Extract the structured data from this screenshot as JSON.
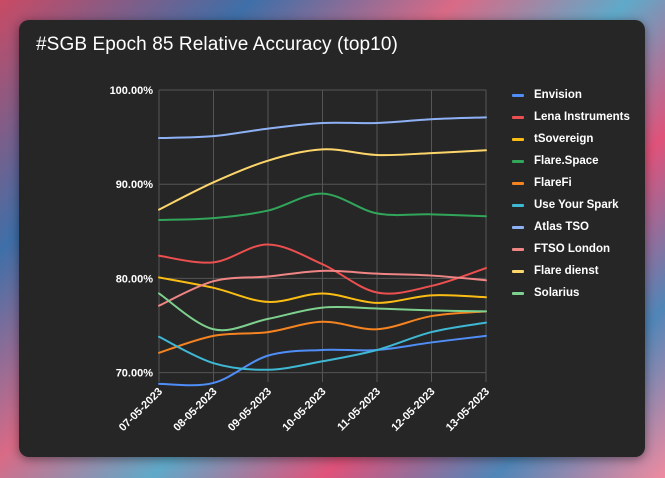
{
  "chart_data": {
    "type": "line",
    "title": "#SGB Epoch 85 Relative Accuracy (top10)",
    "xlabel": "",
    "ylabel": "",
    "ylim": [
      69,
      100
    ],
    "yticks": [
      70,
      80,
      90,
      100
    ],
    "ytick_labels": [
      "70.00%",
      "80.00%",
      "90.00%",
      "100.00%"
    ],
    "categories": [
      "07-05-2023",
      "08-05-2023",
      "09-05-2023",
      "10-05-2023",
      "11-05-2023",
      "12-05-2023",
      "13-05-2023"
    ],
    "grid": true,
    "legend": "right",
    "series": [
      {
        "name": "Envision",
        "color": "#4f8ef7",
        "values": [
          68.8,
          68.9,
          71.8,
          72.4,
          72.4,
          73.2,
          73.9
        ]
      },
      {
        "name": "Lena Instruments",
        "color": "#ec4f4f",
        "values": [
          82.4,
          81.7,
          83.6,
          81.5,
          78.5,
          79.2,
          81.1
        ]
      },
      {
        "name": "tSovereign",
        "color": "#fbbd14",
        "values": [
          80.1,
          79.0,
          77.5,
          78.4,
          77.4,
          78.2,
          78.0
        ]
      },
      {
        "name": "Flare.Space",
        "color": "#31a55a",
        "values": [
          86.2,
          86.4,
          87.2,
          89.0,
          86.9,
          86.8,
          86.6
        ]
      },
      {
        "name": "FlareFi",
        "color": "#f58320",
        "values": [
          72.1,
          73.9,
          74.3,
          75.4,
          74.6,
          76.0,
          76.5
        ]
      },
      {
        "name": "Use Your Spark",
        "color": "#3fb8d4",
        "values": [
          73.8,
          71.0,
          70.3,
          71.2,
          72.4,
          74.3,
          75.3
        ]
      },
      {
        "name": "Atlas TSO",
        "color": "#8eb1f5",
        "values": [
          94.9,
          95.1,
          95.9,
          96.5,
          96.5,
          96.9,
          97.1
        ]
      },
      {
        "name": "FTSO London",
        "color": "#f08585",
        "values": [
          77.1,
          79.7,
          80.2,
          80.8,
          80.5,
          80.3,
          79.8
        ]
      },
      {
        "name": "Flare dienst",
        "color": "#fdd66b",
        "values": [
          87.3,
          90.2,
          92.5,
          93.7,
          93.1,
          93.3,
          93.6
        ]
      },
      {
        "name": "Solarius",
        "color": "#7ed08e",
        "values": [
          78.4,
          74.6,
          75.7,
          76.9,
          76.8,
          76.6,
          76.5
        ]
      }
    ]
  }
}
